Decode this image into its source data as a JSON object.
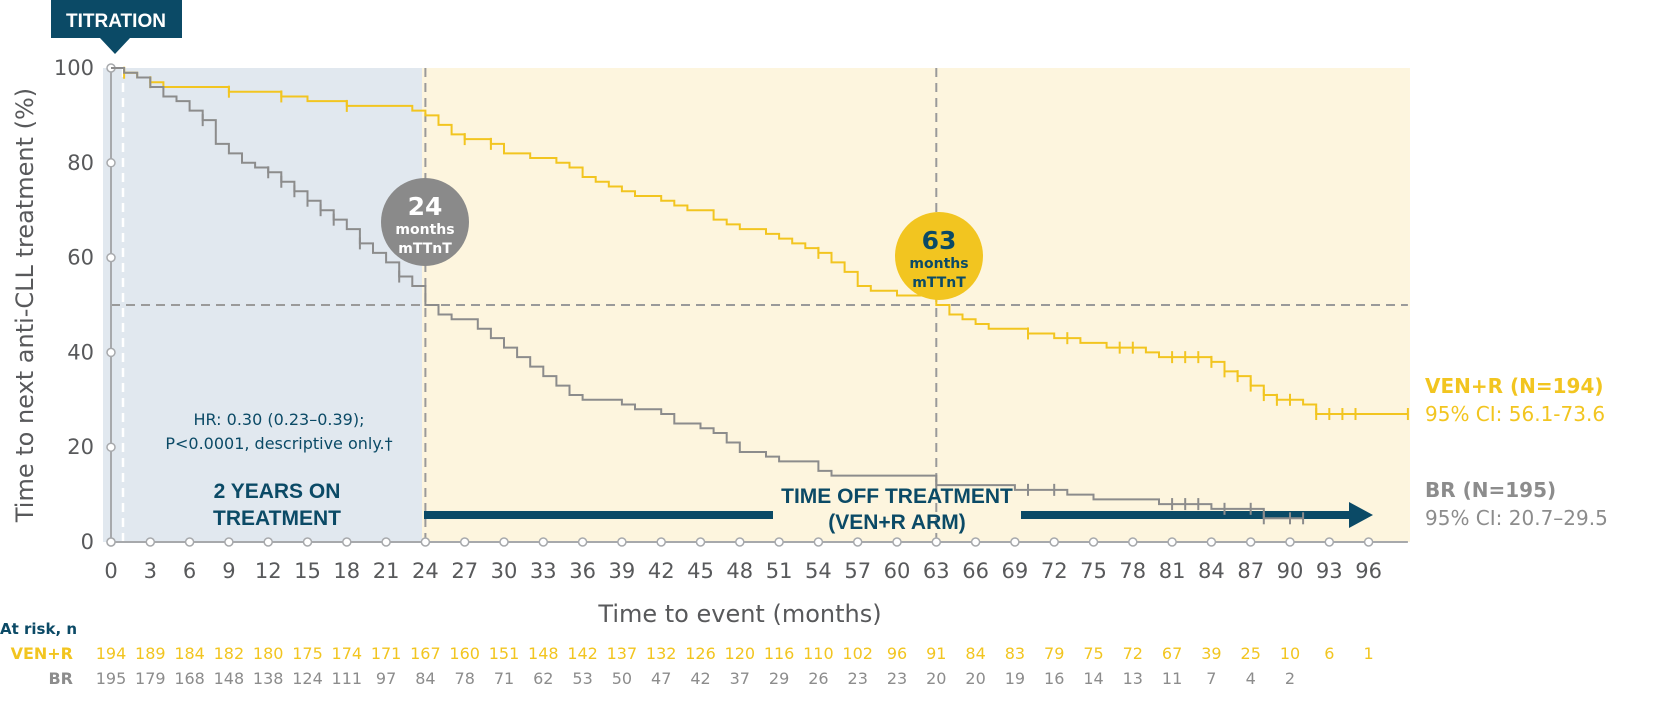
{
  "colors": {
    "ven": "#f2c520",
    "br": "#8c8c8c",
    "navy": "#0b4a66",
    "panel_left": "#e1e8ef",
    "panel_right": "#fdf5de",
    "grey_circle": "#8a8a8a",
    "ref_line": "#9a9a9a"
  },
  "titration_label": "TITRATION",
  "hr_text": [
    "HR: 0.30 (0.23–0.39);",
    "P<0.0001, descriptive only.†"
  ],
  "on_treatment_label": [
    "2 YEARS ON",
    "TREATMENT"
  ],
  "off_treatment_label": [
    "TIME OFF TREATMENT",
    "(VEN+R ARM)"
  ],
  "callouts": [
    {
      "value": "24",
      "unit": "months",
      "label": "mTTnT"
    },
    {
      "value": "63",
      "unit": "months",
      "label": "mTTnT"
    }
  ],
  "legend": {
    "ven_name": "VEN+R (N=194)",
    "ven_ci": "95% CI: 56.1-73.6",
    "br_name": "BR (N=195)",
    "br_ci": "95% CI: 20.7–29.5"
  },
  "risk_table": {
    "header": "At risk, n",
    "ven_label": "VEN+R",
    "br_label": "BR",
    "ven": [
      "194",
      "189",
      "184",
      "182",
      "180",
      "175",
      "174",
      "171",
      "167",
      "160",
      "151",
      "148",
      "142",
      "137",
      "132",
      "126",
      "120",
      "116",
      "110",
      "102",
      "96",
      "91",
      "84",
      "83",
      "79",
      "75",
      "72",
      "67",
      "39",
      "25",
      "10",
      "6",
      "1"
    ],
    "br": [
      "195",
      "179",
      "168",
      "148",
      "138",
      "124",
      "111",
      "97",
      "84",
      "78",
      "71",
      "62",
      "53",
      "50",
      "47",
      "42",
      "37",
      "29",
      "26",
      "23",
      "23",
      "20",
      "20",
      "19",
      "16",
      "14",
      "13",
      "11",
      "7",
      "4",
      "2",
      "",
      ""
    ]
  },
  "chart_data": {
    "type": "line",
    "xlabel": "Time to event (months)",
    "ylabel": "Time to next anti-CLL treatment (%)",
    "x_ticks": [
      0,
      3,
      6,
      9,
      12,
      15,
      18,
      21,
      24,
      27,
      30,
      33,
      36,
      39,
      42,
      45,
      48,
      51,
      54,
      57,
      60,
      63,
      66,
      69,
      72,
      75,
      78,
      81,
      84,
      87,
      90,
      93,
      96
    ],
    "y_ticks": [
      0,
      20,
      40,
      60,
      80,
      100
    ],
    "xlim": [
      0,
      99
    ],
    "ylim": [
      0,
      100
    ],
    "reference_y": 50,
    "medians": [
      24,
      63
    ],
    "series": [
      {
        "name": "VEN+R",
        "points": [
          [
            0,
            100
          ],
          [
            1,
            99
          ],
          [
            2,
            98
          ],
          [
            3,
            97
          ],
          [
            4,
            96
          ],
          [
            6,
            96
          ],
          [
            9,
            95
          ],
          [
            13,
            94
          ],
          [
            15,
            93
          ],
          [
            18,
            92
          ],
          [
            21,
            92
          ],
          [
            23,
            91
          ],
          [
            24,
            90
          ],
          [
            25,
            88
          ],
          [
            26,
            86
          ],
          [
            27,
            85
          ],
          [
            29,
            84
          ],
          [
            30,
            82
          ],
          [
            32,
            81
          ],
          [
            34,
            80
          ],
          [
            35,
            79
          ],
          [
            36,
            77
          ],
          [
            37,
            76
          ],
          [
            38,
            75
          ],
          [
            39,
            74
          ],
          [
            40,
            73
          ],
          [
            42,
            72
          ],
          [
            43,
            71
          ],
          [
            44,
            70
          ],
          [
            46,
            68
          ],
          [
            47,
            67
          ],
          [
            48,
            66
          ],
          [
            50,
            65
          ],
          [
            51,
            64
          ],
          [
            52,
            63
          ],
          [
            53,
            62
          ],
          [
            54,
            61
          ],
          [
            55,
            59
          ],
          [
            56,
            57
          ],
          [
            57,
            54
          ],
          [
            58,
            53
          ],
          [
            60,
            52
          ],
          [
            62,
            52
          ],
          [
            63,
            50
          ],
          [
            64,
            48
          ],
          [
            65,
            47
          ],
          [
            66,
            46
          ],
          [
            67,
            45
          ],
          [
            69,
            45
          ],
          [
            70,
            44
          ],
          [
            71,
            44
          ],
          [
            72,
            43
          ],
          [
            74,
            42
          ],
          [
            76,
            41
          ],
          [
            78,
            41
          ],
          [
            79,
            40
          ],
          [
            80,
            39
          ],
          [
            84,
            38
          ],
          [
            85,
            36
          ],
          [
            86,
            35
          ],
          [
            87,
            33
          ],
          [
            88,
            31
          ],
          [
            89,
            30
          ],
          [
            91,
            29
          ],
          [
            92,
            27
          ],
          [
            99,
            27
          ]
        ],
        "censor_x": [
          1,
          3,
          9,
          13,
          18,
          27,
          29,
          54,
          70,
          73,
          77,
          78,
          81,
          82,
          83,
          84,
          85,
          86,
          87,
          88,
          89,
          90,
          92,
          93,
          94,
          95,
          99
        ]
      },
      {
        "name": "BR",
        "points": [
          [
            0,
            100
          ],
          [
            1,
            99
          ],
          [
            2,
            98
          ],
          [
            3,
            96
          ],
          [
            4,
            94
          ],
          [
            5,
            93
          ],
          [
            6,
            91
          ],
          [
            7,
            89
          ],
          [
            8,
            84
          ],
          [
            9,
            82
          ],
          [
            10,
            80
          ],
          [
            11,
            79
          ],
          [
            12,
            78
          ],
          [
            13,
            76
          ],
          [
            14,
            74
          ],
          [
            15,
            72
          ],
          [
            16,
            70
          ],
          [
            17,
            68
          ],
          [
            18,
            66
          ],
          [
            19,
            63
          ],
          [
            20,
            61
          ],
          [
            21,
            59
          ],
          [
            22,
            56
          ],
          [
            23,
            54
          ],
          [
            24,
            50
          ],
          [
            25,
            48
          ],
          [
            26,
            47
          ],
          [
            28,
            45
          ],
          [
            29,
            43
          ],
          [
            30,
            41
          ],
          [
            31,
            39
          ],
          [
            32,
            37
          ],
          [
            33,
            35
          ],
          [
            34,
            33
          ],
          [
            35,
            31
          ],
          [
            36,
            30
          ],
          [
            39,
            29
          ],
          [
            40,
            28
          ],
          [
            42,
            27
          ],
          [
            43,
            25
          ],
          [
            45,
            24
          ],
          [
            46,
            23
          ],
          [
            47,
            21
          ],
          [
            48,
            19
          ],
          [
            50,
            18
          ],
          [
            51,
            17
          ],
          [
            54,
            15
          ],
          [
            55,
            14
          ],
          [
            62,
            14
          ],
          [
            63,
            12
          ],
          [
            68,
            12
          ],
          [
            69,
            11
          ],
          [
            73,
            10
          ],
          [
            75,
            9
          ],
          [
            80,
            8
          ],
          [
            84,
            7
          ],
          [
            88,
            5
          ],
          [
            91,
            5
          ]
        ],
        "censor_x": [
          7,
          12,
          13,
          14,
          15,
          16,
          17,
          19,
          22,
          63,
          70,
          72,
          81,
          82,
          83,
          85,
          87,
          88,
          90,
          91
        ]
      }
    ]
  }
}
